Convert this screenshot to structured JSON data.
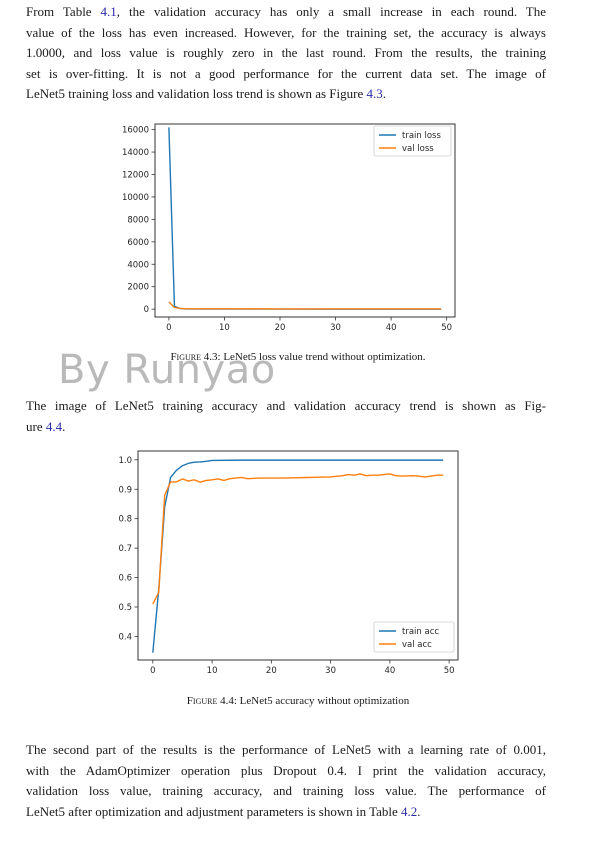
{
  "paragraph1": {
    "lines": [
      [
        "From Table ",
        "4.1",
        ", the validation accuracy has only a small increase in each round.  The"
      ],
      [
        "value of the loss has even increased.  However, for the training set, the accuracy is always"
      ],
      [
        "1.0000, and loss value is roughly zero in the last round.  From the results, the training"
      ],
      [
        "set is over-fitting.  It is not a good performance for the current data set.  The image of"
      ],
      [
        "LeNet5 training loss and validation loss trend is shown as Figure ",
        "4.3",
        "."
      ]
    ]
  },
  "figure1": {
    "caption_prefix": "Figure 4.3:",
    "caption_text": " LeNet5 loss value trend without optimization.",
    "chart_data": {
      "type": "line",
      "x_ticks": [
        0,
        10,
        20,
        30,
        40,
        50
      ],
      "y_ticks": [
        0,
        2000,
        4000,
        6000,
        8000,
        10000,
        12000,
        14000,
        16000
      ],
      "xlim": [
        -2.5,
        51.5
      ],
      "ylim": [
        -700,
        16500
      ],
      "legend_position": "top-right",
      "series": [
        {
          "name": "train loss",
          "color": "#1f77b4",
          "x": [
            0,
            1,
            2,
            3,
            5,
            10,
            20,
            30,
            40,
            49
          ],
          "y": [
            16200,
            250,
            60,
            20,
            10,
            5,
            3,
            2,
            2,
            2
          ]
        },
        {
          "name": "val loss",
          "color": "#ff7f0e",
          "x": [
            0,
            1,
            2,
            3,
            5,
            10,
            20,
            30,
            40,
            49
          ],
          "y": [
            650,
            150,
            60,
            40,
            30,
            25,
            22,
            22,
            22,
            22
          ]
        }
      ]
    }
  },
  "watermark": "By Runyao",
  "paragraph2": {
    "lines": [
      [
        "The image of LeNet5 training accuracy and validation accuracy trend is shown as Fig-"
      ],
      [
        "ure ",
        "4.4",
        "."
      ]
    ]
  },
  "figure2": {
    "caption_prefix": "Figure 4.4:",
    "caption_text": " LeNet5 accuracy without optimization",
    "chart_data": {
      "type": "line",
      "x_ticks": [
        0,
        10,
        20,
        30,
        40,
        50
      ],
      "y_ticks": [
        0.4,
        0.5,
        0.6,
        0.7,
        0.8,
        0.9,
        1.0
      ],
      "xlim": [
        -2.5,
        51.5
      ],
      "ylim": [
        0.32,
        1.03
      ],
      "legend_position": "bottom-right",
      "series": [
        {
          "name": "train acc",
          "color": "#1f77b4",
          "x": [
            0,
            1,
            2,
            3,
            4,
            5,
            6,
            7,
            8,
            9,
            10,
            15,
            20,
            25,
            30,
            35,
            40,
            45,
            49
          ],
          "y": [
            0.345,
            0.56,
            0.84,
            0.94,
            0.965,
            0.98,
            0.988,
            0.992,
            0.993,
            0.995,
            0.998,
            0.999,
            0.999,
            0.999,
            0.999,
            0.999,
            0.999,
            0.999,
            0.999
          ]
        },
        {
          "name": "val acc",
          "color": "#ff7f0e",
          "x": [
            0,
            1,
            2,
            3,
            4,
            5,
            6,
            7,
            8,
            9,
            10,
            11,
            12,
            13,
            14,
            15,
            16,
            18,
            20,
            22,
            24,
            26,
            28,
            30,
            32,
            33,
            34,
            35,
            36,
            37,
            38,
            40,
            41,
            42,
            44,
            46,
            48,
            49
          ],
          "y": [
            0.51,
            0.55,
            0.88,
            0.925,
            0.925,
            0.935,
            0.928,
            0.932,
            0.924,
            0.93,
            0.932,
            0.935,
            0.93,
            0.936,
            0.938,
            0.94,
            0.936,
            0.938,
            0.938,
            0.938,
            0.939,
            0.94,
            0.941,
            0.942,
            0.946,
            0.95,
            0.948,
            0.952,
            0.946,
            0.948,
            0.948,
            0.952,
            0.946,
            0.945,
            0.946,
            0.942,
            0.948,
            0.948
          ]
        }
      ]
    }
  },
  "paragraph3": {
    "lines": [
      [
        "The second part of the results is the performance of LeNet5 with a learning rate of 0.001,"
      ],
      [
        "with the AdamOptimizer operation plus Dropout 0.4.  I print the validation accuracy,"
      ],
      [
        "validation loss value, training accuracy, and training loss value.  The performance of"
      ],
      [
        "LeNet5 after optimization and adjustment parameters is shown in Table ",
        "4.2",
        "."
      ]
    ]
  }
}
